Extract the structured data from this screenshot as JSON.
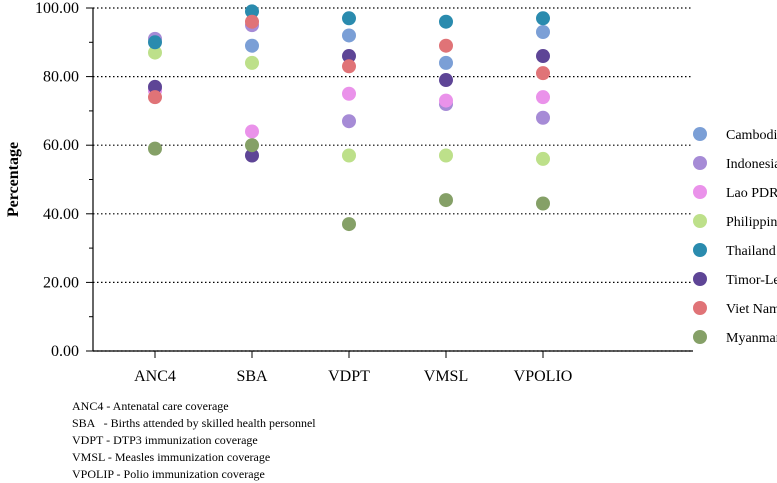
{
  "chart_data": {
    "type": "scatter",
    "title": "",
    "xlabel": "",
    "ylabel": "Percentage",
    "ylim": [
      0,
      100
    ],
    "yticks": [
      "0.00",
      "20.00",
      "40.00",
      "60.00",
      "80.00",
      "100.00"
    ],
    "grid": "horizontal dotted",
    "legend_placement": "right",
    "categories": [
      "ANC4",
      "SBA",
      "VDPT",
      "VMSL",
      "VPOLIO"
    ],
    "series": [
      {
        "name": "Cambodia",
        "color": "#7b9fd6",
        "values": [
          76,
          89,
          92,
          84,
          93
        ]
      },
      {
        "name": "Indonesia",
        "color": "#a68bd6",
        "values": [
          91,
          95,
          67,
          72,
          68
        ]
      },
      {
        "name": "Lao PDR",
        "color": "#ea92ea",
        "values": [
          76,
          64,
          75,
          73,
          74
        ]
      },
      {
        "name": "Philippines",
        "color": "#bde08a",
        "values": [
          87,
          84,
          57,
          57,
          56
        ]
      },
      {
        "name": "Thailand",
        "color": "#2a8bae",
        "values": [
          90,
          99,
          97,
          96,
          97
        ]
      },
      {
        "name": "Timor-Leste",
        "color": "#5e4596",
        "values": [
          77,
          57,
          86,
          79,
          86
        ]
      },
      {
        "name": "Viet Nam",
        "color": "#e07377",
        "values": [
          74,
          96,
          83,
          89,
          81
        ]
      },
      {
        "name": "Myanmar",
        "color": "#85a067",
        "values": [
          59,
          60,
          37,
          44,
          43
        ]
      }
    ]
  },
  "notes": [
    "ANC4 - Antenatal care coverage",
    "SBA   - Births attended by skilled health personnel",
    "VDPT - DTP3 immunization coverage",
    "VMSL - Measles immunization coverage",
    "VPOLIP - Polio immunization coverage"
  ]
}
